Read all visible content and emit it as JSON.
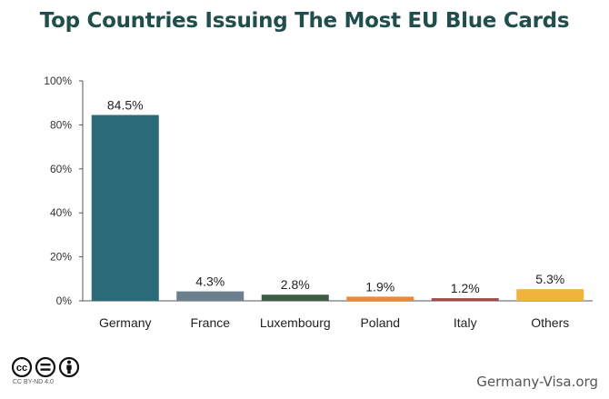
{
  "chart_data": {
    "type": "bar",
    "title": "Top Countries Issuing The Most EU Blue Cards",
    "categories": [
      "Germany",
      "France",
      "Luxembourg",
      "Poland",
      "Italy",
      "Others"
    ],
    "values": [
      84.5,
      4.3,
      2.8,
      1.9,
      1.2,
      5.3
    ],
    "data_labels": [
      "84.5%",
      "4.3%",
      "2.8%",
      "1.9%",
      "1.2%",
      "5.3%"
    ],
    "colors": [
      "#2b6a78",
      "#6c7f8c",
      "#3d5c45",
      "#e8893a",
      "#a24a4a",
      "#f2b33d"
    ],
    "ylim": [
      0,
      100
    ],
    "yticks": [
      0,
      20,
      40,
      60,
      80,
      100
    ],
    "ytick_labels": [
      "0%",
      "20%",
      "40%",
      "60%",
      "80%",
      "100%"
    ],
    "xlabel": "",
    "ylabel": "",
    "grid": false
  },
  "footer": {
    "license_icons": [
      "cc-icon",
      "nd-icon",
      "by-icon"
    ],
    "license_text": "CC BY-ND 4.0",
    "site": "Germany-Visa.org"
  }
}
